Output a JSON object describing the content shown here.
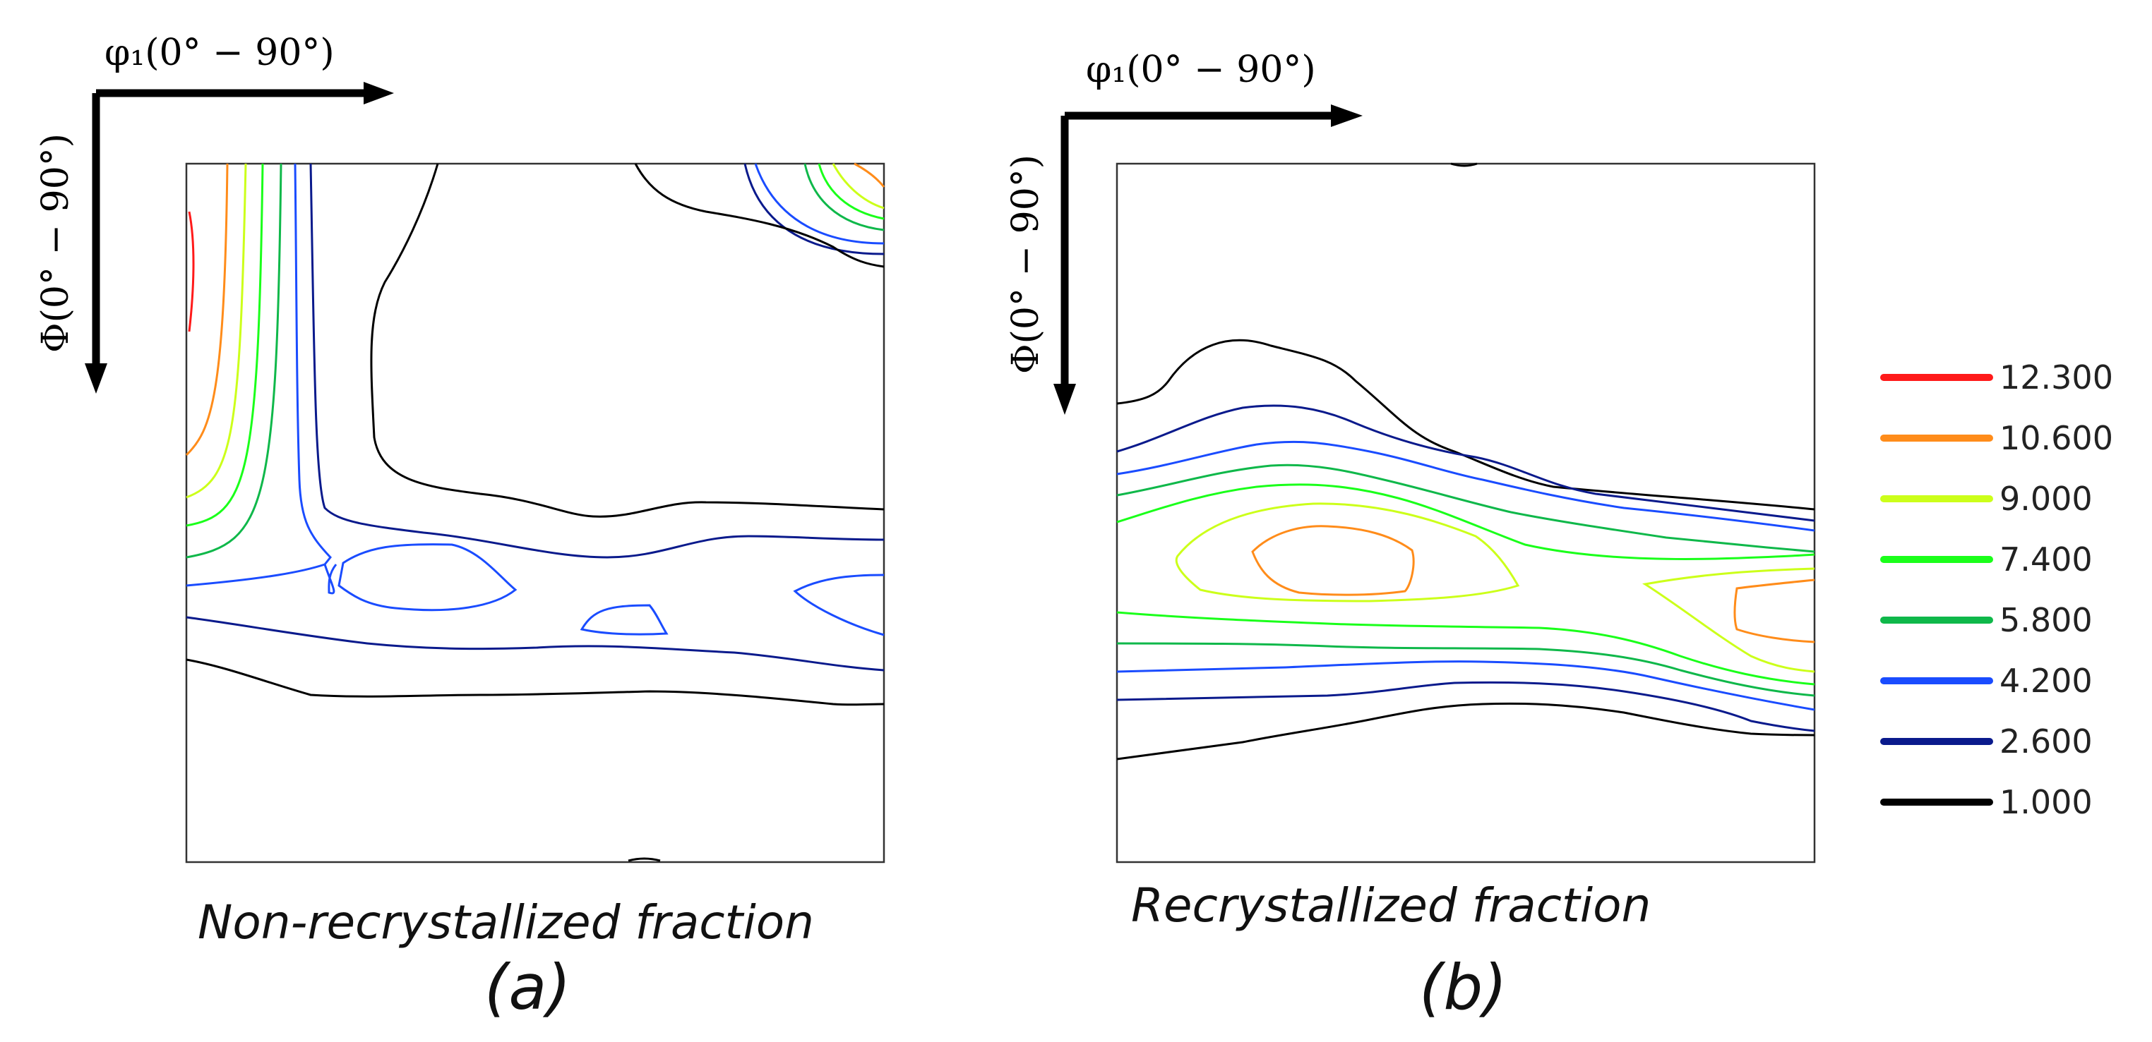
{
  "chart_data": {
    "type": "contour",
    "legend": {
      "placement": "right",
      "levels": [
        {
          "value": "12.300",
          "color": "#ff1a1a"
        },
        {
          "value": "10.600",
          "color": "#ff8c1a"
        },
        {
          "value": "9.000",
          "color": "#ccff1a"
        },
        {
          "value": "7.400",
          "color": "#1aff1a"
        },
        {
          "value": "5.800",
          "color": "#0fb84a"
        },
        {
          "value": "4.200",
          "color": "#1a4cff"
        },
        {
          "value": "2.600",
          "color": "#0a1a8c"
        },
        {
          "value": "1.000",
          "color": "#000000"
        }
      ]
    },
    "panels": [
      {
        "id": "a",
        "caption": "Non-recrystallized fraction",
        "sublabel": "(a)",
        "x_axis_label": "φ₁(0° − 90°)",
        "y_axis_label": "Φ(0° − 90°)",
        "x_range_deg": [
          0,
          90
        ],
        "y_range_deg": [
          0,
          90
        ]
      },
      {
        "id": "b",
        "caption": "Recrystallized fraction",
        "sublabel": "(b)",
        "x_axis_label": "φ₁(0° − 90°)",
        "y_axis_label": "Φ(0° − 90°)",
        "x_range_deg": [
          0,
          90
        ],
        "y_range_deg": [
          0,
          90
        ]
      }
    ]
  }
}
